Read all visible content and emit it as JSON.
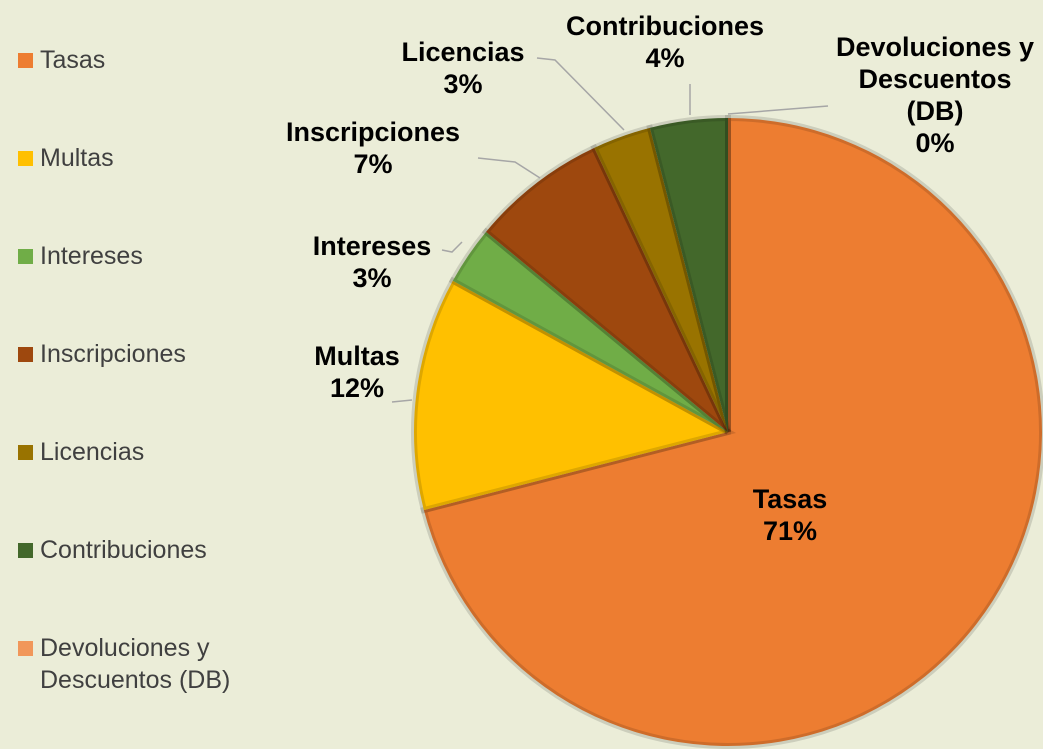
{
  "chart_data": {
    "type": "pie",
    "categories": [
      "Tasas",
      "Multas",
      "Intereses",
      "Inscripciones",
      "Licencias",
      "Contribuciones",
      "Devoluciones y Descuentos (DB)"
    ],
    "values": [
      71,
      12,
      3,
      7,
      3,
      4,
      0
    ],
    "value_labels": [
      "71%",
      "12%",
      "3%",
      "7%",
      "3%",
      "4%",
      "0%"
    ],
    "colors": [
      "#ed7d31",
      "#ffc000",
      "#70ad47",
      "#9e480e",
      "#997300",
      "#43682b",
      "#f1975a"
    ],
    "legend": "left"
  }
}
